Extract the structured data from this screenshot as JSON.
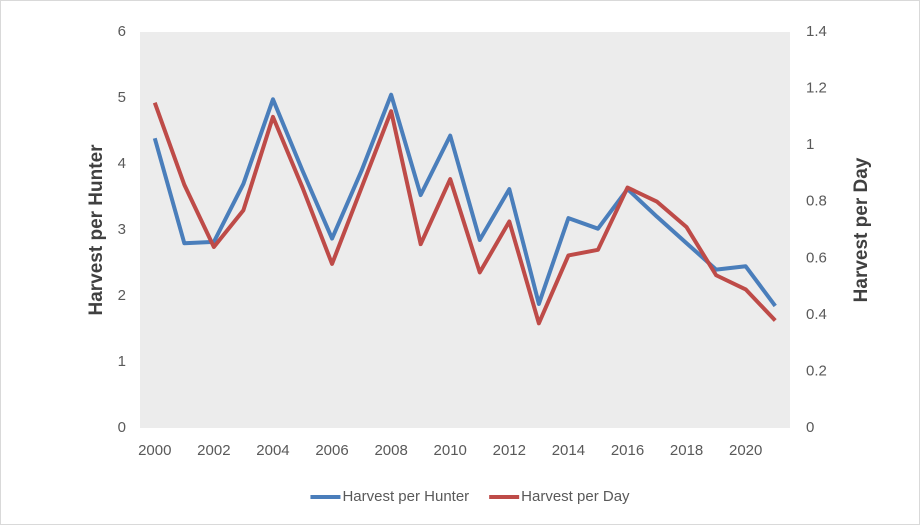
{
  "chart_data": {
    "type": "line",
    "x": [
      2000,
      2001,
      2002,
      2003,
      2004,
      2005,
      2006,
      2007,
      2008,
      2009,
      2010,
      2011,
      2012,
      2013,
      2014,
      2015,
      2016,
      2017,
      2018,
      2019,
      2020,
      2021
    ],
    "xlim": [
      1999.5,
      2021.5
    ],
    "xticks": [
      2000,
      2002,
      2004,
      2006,
      2008,
      2010,
      2012,
      2014,
      2016,
      2018,
      2020
    ],
    "ylabel": "Harvest per Hunter",
    "y2label": "Harvest per Day",
    "ylim": [
      0,
      6
    ],
    "yticks": [
      0,
      1,
      2,
      3,
      4,
      5,
      6
    ],
    "y2lim": [
      0,
      1.4
    ],
    "y2ticks": [
      0,
      0.2,
      0.4,
      0.6,
      0.8,
      1,
      1.2,
      1.4
    ],
    "legend": "bottom",
    "series": [
      {
        "name": "Harvest per Hunter",
        "color": "#4a7ebb",
        "values": [
          4.39,
          2.8,
          2.82,
          3.7,
          4.98,
          3.9,
          2.87,
          3.9,
          5.05,
          3.53,
          4.43,
          2.85,
          3.62,
          1.88,
          3.18,
          3.02,
          3.62,
          3.2,
          2.8,
          2.4,
          2.45,
          1.85
        ]
      },
      {
        "name": "Harvest per Day",
        "color": "#be4b48",
        "axis": "y2",
        "values": [
          1.15,
          0.86,
          0.64,
          0.77,
          1.1,
          0.85,
          0.58,
          0.85,
          1.12,
          0.65,
          0.88,
          0.55,
          0.73,
          0.37,
          0.61,
          0.63,
          0.85,
          0.8,
          0.71,
          0.54,
          0.49,
          0.38
        ]
      }
    ]
  }
}
